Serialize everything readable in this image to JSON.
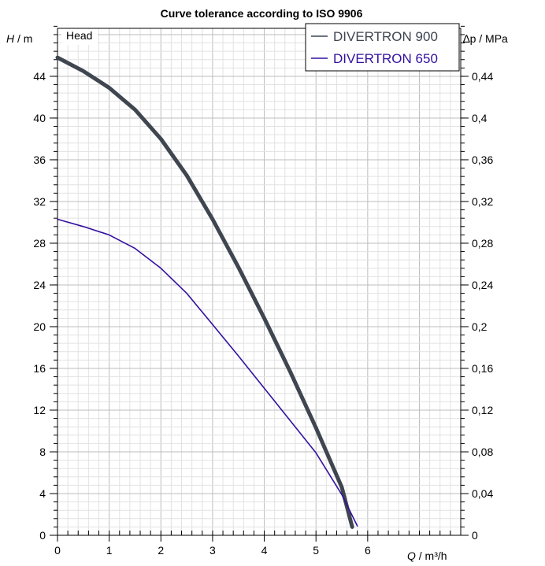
{
  "chart_data": {
    "type": "line",
    "title": "Curve tolerance according to ISO 9906",
    "panel_label": "Head",
    "xlabel": {
      "symbol": "Q",
      "unit": " / m³/h"
    },
    "ylabel": {
      "symbol": "H",
      "unit": " / m"
    },
    "y2label": {
      "symbol": "∆p",
      "unit": " / MPa"
    },
    "xlim": [
      0,
      7.8
    ],
    "ylim": [
      0,
      48.6
    ],
    "y2lim": [
      0,
      0.486
    ],
    "xticks": [
      0,
      1,
      2,
      3,
      4,
      5,
      6
    ],
    "yticks": [
      0,
      4,
      8,
      12,
      16,
      20,
      24,
      28,
      32,
      36,
      40,
      44
    ],
    "y2ticks": [
      {
        "value": 0,
        "label": "0"
      },
      {
        "value": 0.04,
        "label": "0,04"
      },
      {
        "value": 0.08,
        "label": "0,08"
      },
      {
        "value": 0.12,
        "label": "0,12"
      },
      {
        "value": 0.16,
        "label": "0,16"
      },
      {
        "value": 0.2,
        "label": "0,2"
      },
      {
        "value": 0.24,
        "label": "0,24"
      },
      {
        "value": 0.28,
        "label": "0,28"
      },
      {
        "value": 0.32,
        "label": "0,32"
      },
      {
        "value": 0.36,
        "label": "0,36"
      },
      {
        "value": 0.4,
        "label": "0,4"
      },
      {
        "value": 0.44,
        "label": "0,44"
      }
    ],
    "grid": true,
    "legend_position": "top-right",
    "series": [
      {
        "name": "DIVERTRON 900",
        "color": "#3f4650",
        "x": [
          0,
          0.5,
          1,
          1.5,
          2,
          2.5,
          3,
          3.5,
          4,
          4.5,
          5,
          5.5,
          5.7
        ],
        "y": [
          45.8,
          44.5,
          42.9,
          40.8,
          38.0,
          34.5,
          30.3,
          25.7,
          20.8,
          15.7,
          10.3,
          4.6,
          0.8
        ]
      },
      {
        "name": "DIVERTRON 650",
        "color": "#33109f",
        "x": [
          0,
          0.5,
          1,
          1.5,
          2,
          2.5,
          3,
          3.5,
          4,
          4.5,
          5,
          5.5,
          5.8
        ],
        "y": [
          30.3,
          29.6,
          28.8,
          27.5,
          25.6,
          23.2,
          20.2,
          17.2,
          14.1,
          11.0,
          7.9,
          3.9,
          0.9
        ]
      }
    ]
  }
}
